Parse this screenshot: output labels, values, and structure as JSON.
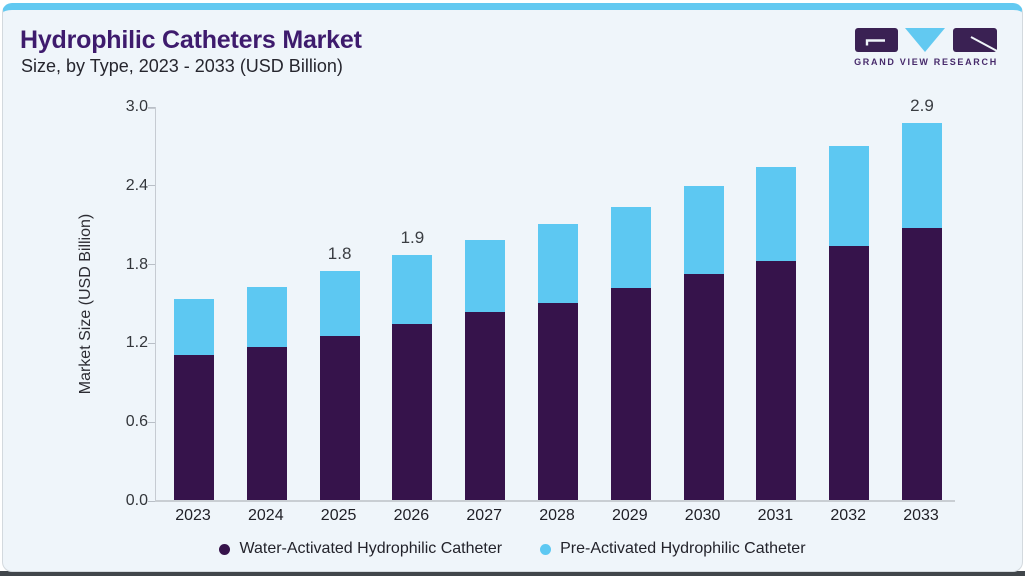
{
  "header": {
    "title": "Hydrophilic Catheters Market",
    "subtitle": "Size, by Type, 2023 - 2033 (USD Billion)"
  },
  "logo": {
    "text": "GRAND VIEW RESEARCH"
  },
  "colors": {
    "accent_blue": "#62c9f1",
    "bar_purple": "#36134b",
    "bar_blue": "#5dc8f2",
    "title_purple": "#3e1b6d",
    "card_bg": "#eff5fa",
    "logo_purple": "#3a2153",
    "logo_text_purple": "#472a6b"
  },
  "chart_data": {
    "type": "bar",
    "stacked": true,
    "title": "Hydrophilic Catheters Market Size, by Type, 2023 - 2033 (USD Billion)",
    "categories": [
      "2023",
      "2024",
      "2025",
      "2026",
      "2027",
      "2028",
      "2029",
      "2030",
      "2031",
      "2032",
      "2033"
    ],
    "series": [
      {
        "name": "Water-Activated Hydrophilic Catheter",
        "color": "#36134b",
        "values": [
          1.11,
          1.17,
          1.26,
          1.35,
          1.44,
          1.51,
          1.62,
          1.73,
          1.83,
          1.94,
          2.08
        ]
      },
      {
        "name": "Pre-Activated Hydrophilic Catheter",
        "color": "#5dc8f2",
        "values": [
          0.43,
          0.46,
          0.49,
          0.52,
          0.55,
          0.6,
          0.62,
          0.67,
          0.71,
          0.76,
          0.8
        ]
      }
    ],
    "totals": [
      1.54,
      1.63,
      1.75,
      1.87,
      1.99,
      2.11,
      2.24,
      2.4,
      2.54,
      2.7,
      2.88
    ],
    "bar_labels": [
      "",
      "",
      "1.8",
      "1.9",
      "",
      "",
      "",
      "",
      "",
      "",
      "2.9"
    ],
    "ylabel": "Market Size (USD Billion)",
    "yticks": [
      "3.0",
      "2.4",
      "1.8",
      "1.2",
      "0.6",
      "0.0"
    ],
    "ylim": [
      0,
      3.0
    ],
    "legend_position": "bottom",
    "grid": false
  }
}
